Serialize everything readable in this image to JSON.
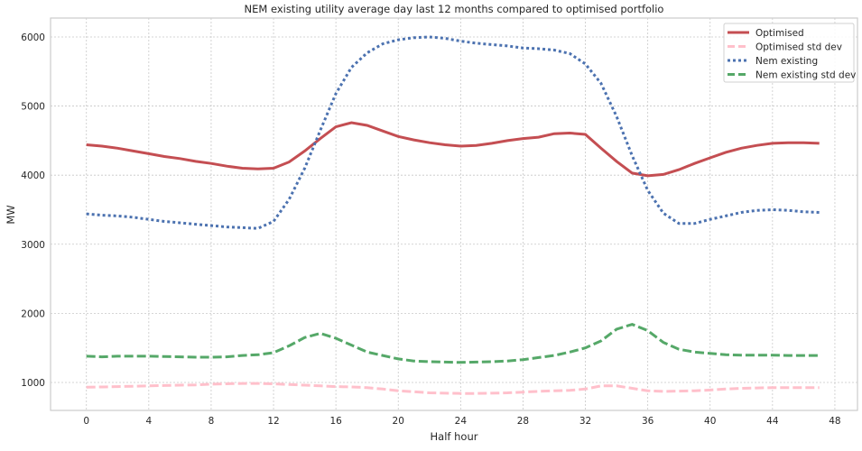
{
  "chart_data": {
    "type": "line",
    "title": "NEM existing utility average day last 12 months compared to optimised portfolio",
    "xlabel": "Half hour",
    "ylabel": "MW",
    "xlim": [
      -2.3,
      49.45
    ],
    "ylim": [
      595,
      6274
    ],
    "xticks": [
      0,
      4,
      8,
      12,
      16,
      20,
      24,
      28,
      32,
      36,
      40,
      44,
      48
    ],
    "yticks": [
      1000,
      2000,
      3000,
      4000,
      5000,
      6000
    ],
    "grid": true,
    "legend_position": "top-right",
    "x": [
      0,
      1,
      2,
      3,
      4,
      5,
      6,
      7,
      8,
      9,
      10,
      11,
      12,
      13,
      14,
      15,
      16,
      17,
      18,
      19,
      20,
      21,
      22,
      23,
      24,
      25,
      26,
      27,
      28,
      29,
      30,
      31,
      32,
      33,
      34,
      35,
      36,
      37,
      38,
      39,
      40,
      41,
      42,
      43,
      44,
      45,
      46,
      47
    ],
    "series": [
      {
        "name": "Optimised",
        "color": "#c44e52",
        "style": "solid",
        "values": [
          4440,
          4420,
          4390,
          4350,
          4310,
          4270,
          4240,
          4200,
          4170,
          4130,
          4100,
          4090,
          4100,
          4190,
          4350,
          4530,
          4700,
          4760,
          4720,
          4640,
          4560,
          4510,
          4470,
          4440,
          4420,
          4430,
          4460,
          4500,
          4530,
          4550,
          4600,
          4610,
          4590,
          4390,
          4200,
          4030,
          3990,
          4010,
          4080,
          4170,
          4250,
          4330,
          4390,
          4430,
          4460,
          4470,
          4470,
          4460
        ]
      },
      {
        "name": "Optimised std dev",
        "color": "#ffc0cb",
        "style": "dashed",
        "values": [
          930,
          935,
          940,
          945,
          950,
          955,
          960,
          965,
          975,
          980,
          985,
          985,
          980,
          970,
          960,
          950,
          940,
          935,
          925,
          905,
          880,
          865,
          850,
          845,
          840,
          840,
          845,
          850,
          860,
          870,
          880,
          885,
          905,
          950,
          950,
          915,
          880,
          870,
          875,
          880,
          890,
          905,
          915,
          920,
          925,
          925,
          925,
          925
        ]
      },
      {
        "name": "Nem existing",
        "color": "#4c72b0",
        "style": "dotted",
        "values": [
          3440,
          3420,
          3410,
          3390,
          3360,
          3330,
          3310,
          3290,
          3270,
          3250,
          3240,
          3230,
          3330,
          3650,
          4100,
          4650,
          5180,
          5560,
          5770,
          5900,
          5960,
          5990,
          6000,
          5980,
          5940,
          5910,
          5890,
          5870,
          5840,
          5830,
          5810,
          5760,
          5610,
          5330,
          4850,
          4280,
          3780,
          3450,
          3300,
          3300,
          3360,
          3410,
          3460,
          3490,
          3500,
          3490,
          3470,
          3460
        ]
      },
      {
        "name": "Nem existing std dev",
        "color": "#55a868",
        "style": "dashed",
        "values": [
          1380,
          1370,
          1380,
          1380,
          1380,
          1375,
          1370,
          1365,
          1365,
          1370,
          1390,
          1400,
          1430,
          1530,
          1650,
          1710,
          1640,
          1540,
          1440,
          1390,
          1340,
          1310,
          1300,
          1295,
          1290,
          1295,
          1300,
          1310,
          1330,
          1360,
          1390,
          1440,
          1500,
          1600,
          1770,
          1840,
          1750,
          1580,
          1480,
          1440,
          1420,
          1400,
          1395,
          1395,
          1395,
          1390,
          1390,
          1390
        ]
      }
    ]
  }
}
